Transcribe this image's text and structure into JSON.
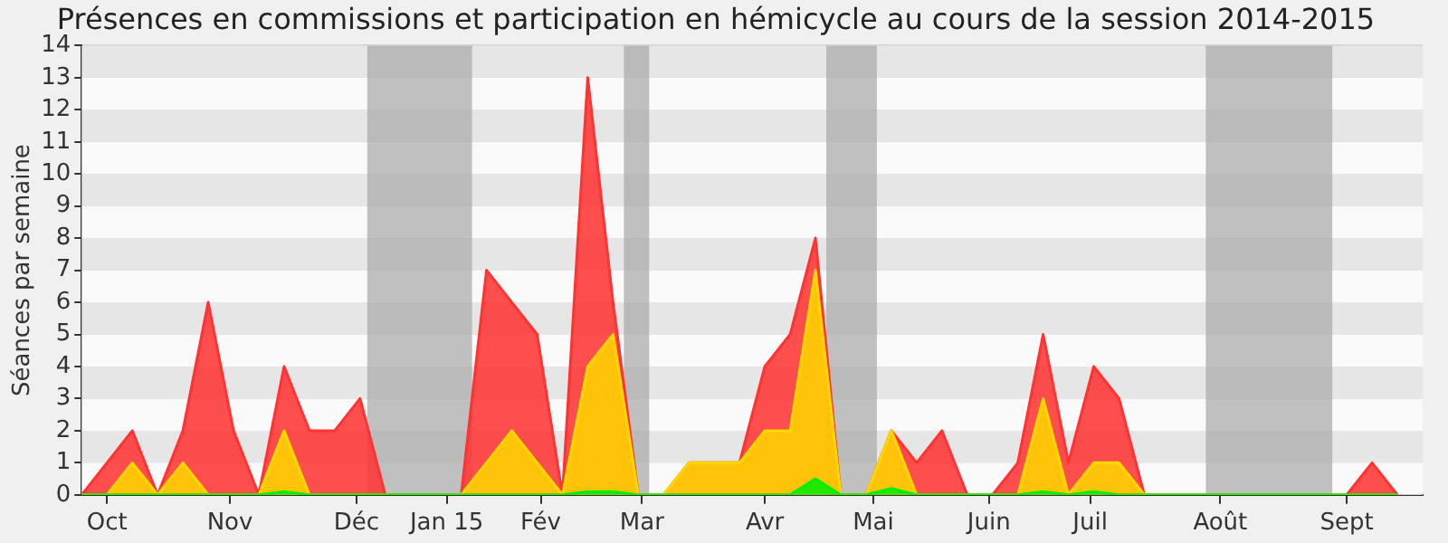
{
  "chart_data": {
    "type": "area",
    "title": "Présences en commissions et participation en hémicycle au cours de la session 2014-2015",
    "ylabel": "Séances par semaine",
    "x": [
      "2014-09-29",
      "2014-10-06",
      "2014-10-13",
      "2014-10-20",
      "2014-10-27",
      "2014-11-03",
      "2014-11-10",
      "2014-11-17",
      "2014-11-24",
      "2014-12-01",
      "2014-12-08",
      "2014-12-15",
      "2014-12-22",
      "2014-12-29",
      "2015-01-05",
      "2015-01-12",
      "2015-01-19",
      "2015-01-26",
      "2015-02-02",
      "2015-02-09",
      "2015-02-16",
      "2015-02-23",
      "2015-03-02",
      "2015-03-09",
      "2015-03-16",
      "2015-03-23",
      "2015-03-30",
      "2015-04-06",
      "2015-04-13",
      "2015-04-20",
      "2015-04-27",
      "2015-05-04",
      "2015-05-11",
      "2015-05-18",
      "2015-05-25",
      "2015-06-01",
      "2015-06-08",
      "2015-06-15",
      "2015-06-22",
      "2015-06-29",
      "2015-07-06",
      "2015-07-13",
      "2015-07-20",
      "2015-07-27",
      "2015-08-03",
      "2015-08-10",
      "2015-08-17",
      "2015-08-24",
      "2015-08-31",
      "2015-09-07",
      "2015-09-14",
      "2015-09-21",
      "2015-09-28"
    ],
    "series": [
      {
        "color": "#ff3333",
        "values": [
          0,
          1,
          2,
          0,
          2,
          6,
          2,
          0,
          4,
          2,
          2,
          3,
          0,
          0,
          0,
          0,
          7,
          6,
          5,
          0,
          13,
          6,
          0,
          0,
          1,
          1,
          1,
          4,
          5,
          8,
          0,
          0,
          2,
          1,
          2,
          0,
          0,
          1,
          5,
          1,
          4,
          3,
          0,
          0,
          0,
          0,
          0,
          0,
          0,
          0,
          0,
          1,
          0
        ]
      },
      {
        "color": "#ffd700",
        "values": [
          0,
          0,
          1,
          0,
          1,
          0,
          0,
          0,
          2,
          0,
          0,
          0,
          0,
          0,
          0,
          0,
          1,
          2,
          1,
          0,
          4,
          5,
          0,
          0,
          1,
          1,
          1,
          2,
          2,
          7,
          0,
          0,
          2,
          0,
          0,
          0,
          0,
          0,
          3,
          0,
          1,
          1,
          0,
          0,
          0,
          0,
          0,
          0,
          0,
          0,
          0,
          0,
          0
        ]
      },
      {
        "color": "#00ee00",
        "values": [
          0,
          0,
          0,
          0,
          0,
          0,
          0,
          0,
          0.1,
          0,
          0,
          0,
          0,
          0,
          0,
          0,
          0,
          0,
          0,
          0,
          0.1,
          0.1,
          0,
          0,
          0,
          0,
          0,
          0,
          0,
          0.5,
          0,
          0,
          0.2,
          0,
          0,
          0,
          0,
          0,
          0.1,
          0,
          0.1,
          0,
          0,
          0,
          0,
          0,
          0,
          0,
          0,
          0,
          0,
          0,
          0
        ]
      }
    ],
    "xlim": [
      "2014-09-29",
      "2015-10-05"
    ],
    "xticks": [
      {
        "value": "2014-10-06",
        "label": "Oct"
      },
      {
        "value": "2014-11-09",
        "label": "Nov"
      },
      {
        "value": "2014-12-14",
        "label": "Déc"
      },
      {
        "value": "2015-01-08",
        "label": "Jan 15"
      },
      {
        "value": "2015-02-03",
        "label": "Fév"
      },
      {
        "value": "2015-03-03",
        "label": "Mar"
      },
      {
        "value": "2015-04-06",
        "label": "Avr"
      },
      {
        "value": "2015-05-06",
        "label": "Mai"
      },
      {
        "value": "2015-06-07",
        "label": "Juin"
      },
      {
        "value": "2015-07-05",
        "label": "Juil"
      },
      {
        "value": "2015-08-10",
        "label": "Août"
      },
      {
        "value": "2015-09-14",
        "label": "Sept"
      }
    ],
    "ylim": [
      0,
      14
    ],
    "yticks": [
      0,
      1,
      2,
      3,
      4,
      5,
      6,
      7,
      8,
      9,
      10,
      11,
      12,
      13,
      14
    ],
    "bands": [
      {
        "axis": "x",
        "from": "2014-12-17",
        "to": "2015-01-15",
        "color": "#aaaaaa"
      },
      {
        "axis": "x",
        "from": "2015-02-26",
        "to": "2015-03-05",
        "color": "#aaaaaa"
      },
      {
        "axis": "x",
        "from": "2015-04-23",
        "to": "2015-05-07",
        "color": "#aaaaaa"
      },
      {
        "axis": "x",
        "from": "2015-08-06",
        "to": "2015-09-10",
        "color": "#aaaaaa"
      }
    ],
    "grid": "y",
    "legend": false,
    "marker": "none"
  }
}
